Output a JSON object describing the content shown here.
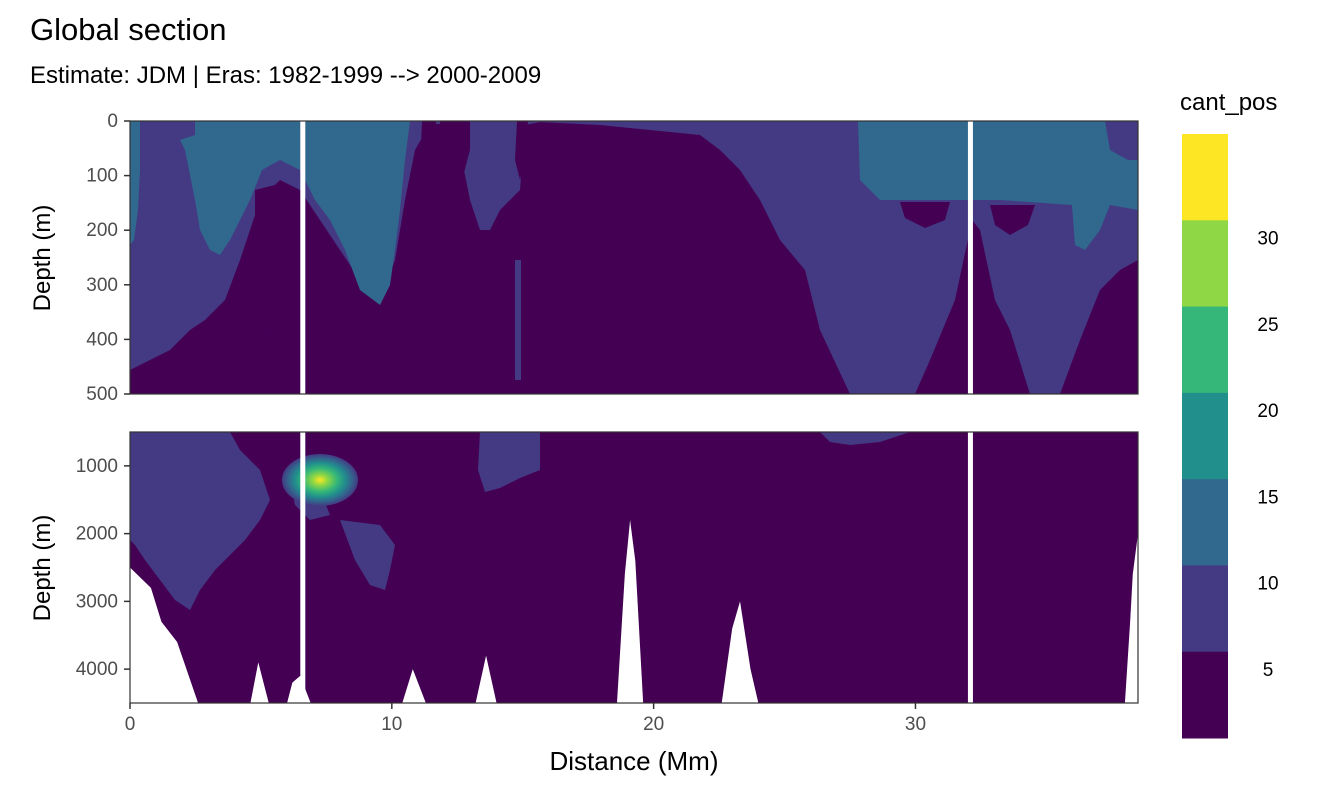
{
  "chart_data": {
    "type": "heatmap",
    "title": "Global section",
    "subtitle": "Estimate: JDM  | Eras: 1982-1999 --> 2000-2009",
    "xlabel": "Distance (Mm)",
    "ylabel": "Depth (m)",
    "xlim": [
      0,
      38.5
    ],
    "x_ticks": [
      0,
      10,
      20,
      30
    ],
    "panels": [
      {
        "ylim": [
          0,
          500
        ],
        "y_ticks": [
          0,
          100,
          200,
          300,
          400,
          500
        ]
      },
      {
        "ylim": [
          500,
          4500
        ],
        "y_ticks": [
          1000,
          2000,
          3000,
          4000
        ]
      }
    ],
    "legend": {
      "title": "cant_pos",
      "position": "right",
      "breaks": [
        5,
        10,
        15,
        20,
        25,
        30
      ],
      "colors": [
        "#440154",
        "#443A83",
        "#31688E",
        "#21908C",
        "#35B779",
        "#8FD744",
        "#FDE725"
      ]
    },
    "gaps_x": [
      6.6,
      32.1
    ],
    "grid": true,
    "seafloor": [
      [
        0,
        2500
      ],
      [
        0.8,
        2800
      ],
      [
        1.2,
        3300
      ],
      [
        1.8,
        3600
      ],
      [
        2.6,
        4500
      ],
      [
        4.6,
        4500
      ],
      [
        4.9,
        3900
      ],
      [
        5.3,
        4500
      ],
      [
        6.0,
        4500
      ],
      [
        6.2,
        4200
      ],
      [
        6.5,
        4100
      ],
      [
        6.9,
        4500
      ],
      [
        10.4,
        4500
      ],
      [
        10.8,
        4000
      ],
      [
        11.3,
        4500
      ],
      [
        13.2,
        4500
      ],
      [
        13.6,
        3800
      ],
      [
        14.0,
        4500
      ],
      [
        18.6,
        4500
      ],
      [
        18.9,
        2600
      ],
      [
        19.1,
        1800
      ],
      [
        19.3,
        2400
      ],
      [
        19.6,
        4500
      ],
      [
        22.6,
        4500
      ],
      [
        23.0,
        3400
      ],
      [
        23.3,
        3000
      ],
      [
        23.7,
        4000
      ],
      [
        24.0,
        4500
      ],
      [
        38.0,
        4500
      ],
      [
        38.2,
        3300
      ],
      [
        38.3,
        2600
      ],
      [
        38.5,
        2000
      ]
    ],
    "hotspot": {
      "x": 7.2,
      "depth": 1200,
      "max_value": 32
    }
  }
}
